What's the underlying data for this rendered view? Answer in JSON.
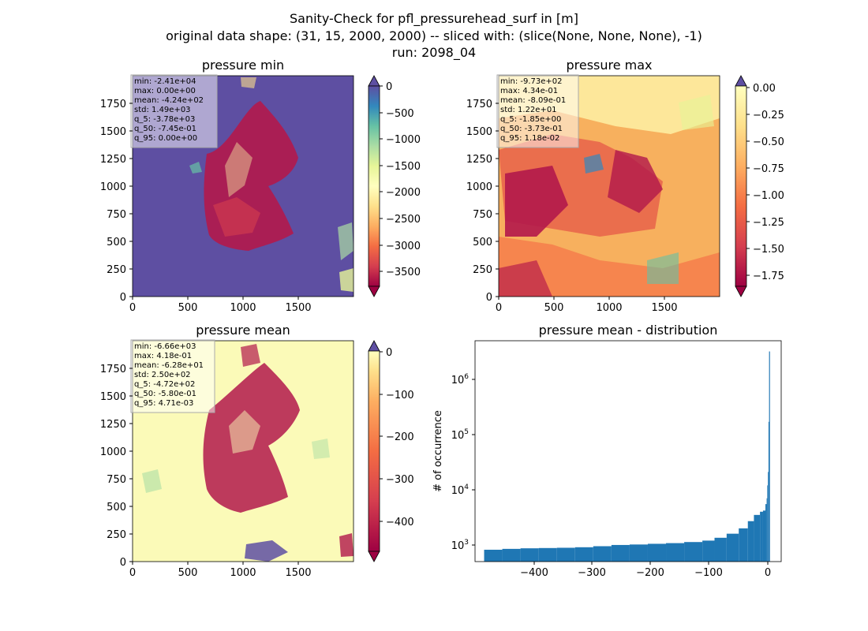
{
  "suptitle": {
    "line1": "Sanity-Check for pfl_pressurehead_surf in [m]",
    "line2": "original data shape: (31, 15, 2000, 2000) -- sliced with: (slice(None, None, None), -1)",
    "line3": "run: 2098_04"
  },
  "chart_data": [
    {
      "type": "heatmap",
      "title": "pressure min",
      "xticks": [
        "0",
        "500",
        "1000",
        "1500"
      ],
      "yticks": [
        "0",
        "250",
        "500",
        "750",
        "1000",
        "1250",
        "1500",
        "1750"
      ],
      "xlim": [
        0,
        2000
      ],
      "ylim": [
        0,
        2000
      ],
      "colormap": "Spectral",
      "colorbar": {
        "ticks": [
          "0",
          "−500",
          "−1000",
          "−1500",
          "−2000",
          "−2500",
          "−3000",
          "−3500"
        ],
        "range": [
          -3780,
          0
        ],
        "extend": "both"
      },
      "stats": [
        "min: -2.41e+04",
        "max: 0.00e+00",
        "mean: -4.24e+02",
        "std: 1.49e+03",
        "q_5: -3.78e+03",
        "q_50: -7.45e-01",
        "q_95: 0.00e+00"
      ]
    },
    {
      "type": "heatmap",
      "title": "pressure max",
      "xticks": [
        "0",
        "500",
        "1000",
        "1500"
      ],
      "yticks": [
        "0",
        "250",
        "500",
        "750",
        "1000",
        "1250",
        "1500",
        "1750"
      ],
      "xlim": [
        0,
        2000
      ],
      "ylim": [
        0,
        2000
      ],
      "colormap": "Spectral",
      "colorbar": {
        "ticks": [
          "0.00",
          "−0.25",
          "−0.50",
          "−0.75",
          "−1.00",
          "−1.25",
          "−1.50",
          "−1.75"
        ],
        "range": [
          -1.85,
          0.0118
        ],
        "extend": "both"
      },
      "stats": [
        "min: -9.73e+02",
        "max: 4.34e-01",
        "mean: -8.09e-01",
        "std: 1.22e+01",
        "q_5: -1.85e+00",
        "q_50: -3.73e-01",
        "q_95: 1.18e-02"
      ]
    },
    {
      "type": "heatmap",
      "title": "pressure mean",
      "xticks": [
        "0",
        "500",
        "1000",
        "1500"
      ],
      "yticks": [
        "0",
        "250",
        "500",
        "750",
        "1000",
        "1250",
        "1500",
        "1750"
      ],
      "xlim": [
        0,
        2000
      ],
      "ylim": [
        0,
        2000
      ],
      "colormap": "Spectral",
      "colorbar": {
        "ticks": [
          "0",
          "−100",
          "−200",
          "−300",
          "−400"
        ],
        "range": [
          -472,
          0.0047
        ],
        "extend": "both"
      },
      "stats": [
        "min: -6.66e+03",
        "max: 4.18e-01",
        "mean: -6.28e+01",
        "std: 2.50e+02",
        "q_5: -4.72e+02",
        "q_50: -5.80e-01",
        "q_95: 4.71e-03"
      ]
    },
    {
      "type": "bar",
      "title": "pressure mean - distribution",
      "ylabel": "# of occurrence",
      "xlabel": "",
      "yscale": "log",
      "xticks": [
        "−400",
        "−300",
        "−200",
        "−100",
        "0"
      ],
      "yticks": [
        "10",
        "10",
        "10",
        "10"
      ],
      "ytick_exponents": [
        "3",
        "4",
        "5",
        "6"
      ],
      "xlim": [
        -485,
        20
      ],
      "ylim": [
        500,
        5000000
      ],
      "x": [
        -470,
        -440,
        -410,
        -380,
        -350,
        -320,
        -290,
        -260,
        -230,
        -200,
        -170,
        -140,
        -110,
        -90,
        -70,
        -50,
        -35,
        -25,
        -15,
        -10,
        -6,
        -4,
        -3,
        -2,
        -1,
        0
      ],
      "values": [
        820,
        850,
        870,
        880,
        890,
        910,
        950,
        1000,
        1020,
        1050,
        1080,
        1130,
        1200,
        1350,
        1600,
        2000,
        2700,
        3500,
        4000,
        4200,
        5500,
        7000,
        12000,
        21000,
        170000,
        3200000
      ],
      "color": "#1f77b4"
    }
  ]
}
